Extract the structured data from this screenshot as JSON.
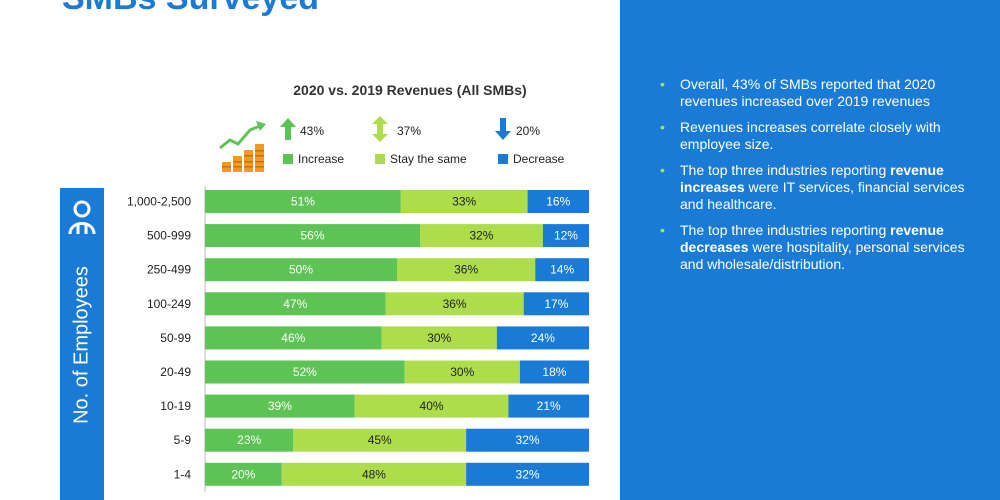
{
  "page": {
    "title": "SMBs Surveyed",
    "side_label": "No. of Employees"
  },
  "legend": [
    {
      "pct": "43%",
      "label": "Increase",
      "color": "#5cc354",
      "icon": "arrow-up-icon"
    },
    {
      "pct": "37%",
      "label": "Stay the same",
      "color": "#aedd4c",
      "icon": "arrow-updown-icon"
    },
    {
      "pct": "20%",
      "label": "Decrease",
      "color": "#1a7bd6",
      "icon": "arrow-down-icon"
    }
  ],
  "chart_data": {
    "type": "bar",
    "stacked": true,
    "orientation": "horizontal",
    "title": "2020 vs. 2019 Revenues (All SMBs)",
    "categories": [
      "1,000-2,500",
      "500-999",
      "250-499",
      "100-249",
      "50-99",
      "20-49",
      "10-19",
      "5-9",
      "1-4"
    ],
    "series": [
      {
        "name": "Increase",
        "values": [
          51,
          56,
          50,
          47,
          46,
          52,
          39,
          23,
          20
        ],
        "color": "#5cc354"
      },
      {
        "name": "Stay the same",
        "values": [
          33,
          32,
          36,
          36,
          30,
          30,
          40,
          45,
          48
        ],
        "color": "#aedd4c"
      },
      {
        "name": "Decrease",
        "values": [
          16,
          12,
          14,
          17,
          24,
          18,
          21,
          32,
          32
        ],
        "color": "#1a7bd6"
      }
    ],
    "value_labels": [
      [
        "51%",
        "56%",
        "50%",
        "47%",
        "46%",
        "52%",
        "39%",
        "23%",
        "20%"
      ],
      [
        "33%",
        "32%",
        "36%",
        "36%",
        "30%",
        "30%",
        "40%",
        "45%",
        "48%"
      ],
      [
        "16%",
        "12%",
        "14%",
        "17%",
        "24%",
        "18%",
        "21%",
        "32%",
        "32%"
      ]
    ],
    "xlim": [
      0,
      100
    ],
    "grid": false
  },
  "bullets": [
    [
      {
        "t": "Overall, 43% of SMBs reported that 2020 revenues increased over 2019 revenues"
      }
    ],
    [
      {
        "t": "Revenues increases correlate closely with employee size."
      }
    ],
    [
      {
        "t": "The top three industries reporting "
      },
      {
        "t": "revenue increases",
        "b": true
      },
      {
        "t": " were IT services, financial services and healthcare."
      }
    ],
    [
      {
        "t": "The top three industries reporting "
      },
      {
        "t": "revenue decreases",
        "b": true
      },
      {
        "t": " were hospitality, personal services and wholesale/distribution."
      }
    ]
  ]
}
